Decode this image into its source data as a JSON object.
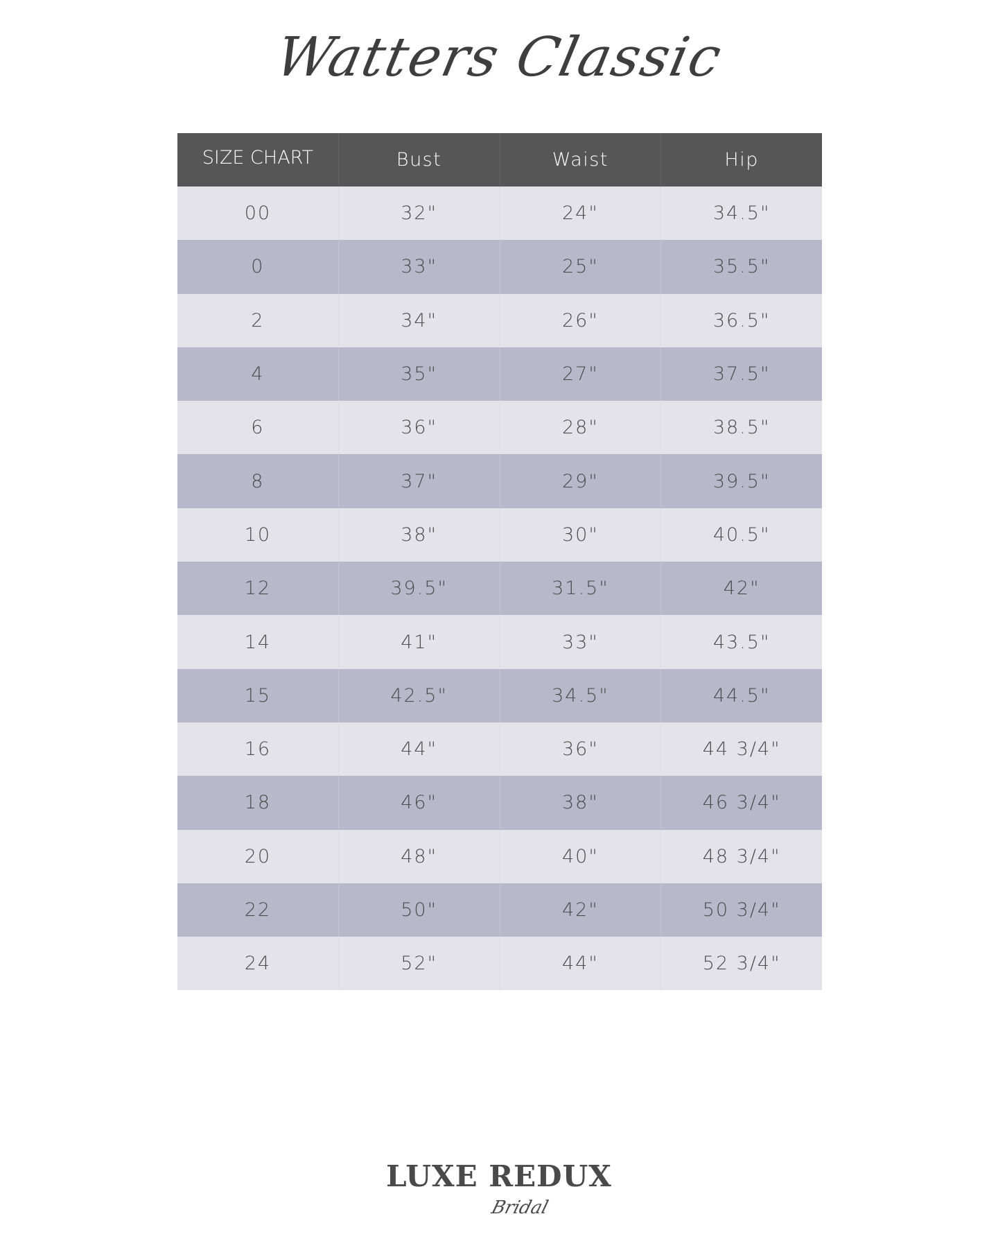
{
  "title": "Watters Classic",
  "table": {
    "headers": [
      "SIZE CHART",
      "Bust",
      "Waist",
      "Hip"
    ],
    "rows": [
      [
        "00",
        "32\"",
        "24\"",
        "34.5\""
      ],
      [
        "0",
        "33\"",
        "25\"",
        "35.5\""
      ],
      [
        "2",
        "34\"",
        "26\"",
        "36.5\""
      ],
      [
        "4",
        "35\"",
        "27\"",
        "37.5\""
      ],
      [
        "6",
        "36\"",
        "28\"",
        "38.5\""
      ],
      [
        "8",
        "37\"",
        "29\"",
        "39.5\""
      ],
      [
        "10",
        "38\"",
        "30\"",
        "40.5\""
      ],
      [
        "12",
        "39.5\"",
        "31.5\"",
        "42\""
      ],
      [
        "14",
        "41\"",
        "33\"",
        "43.5\""
      ],
      [
        "15",
        "42.5\"",
        "34.5\"",
        "44.5\""
      ],
      [
        "16",
        "44\"",
        "36\"",
        "44 3/4\""
      ],
      [
        "18",
        "46\"",
        "38\"",
        "46 3/4\""
      ],
      [
        "20",
        "48\"",
        "40\"",
        "48 3/4\""
      ],
      [
        "22",
        "50\"",
        "42\"",
        "50 3/4\""
      ],
      [
        "24",
        "52\"",
        "44\"",
        "52 3/4\""
      ]
    ]
  },
  "logo": {
    "main": "LUXE REDUX",
    "sub": "Bridal"
  },
  "colors": {
    "header_bg": "#565656",
    "row_light": "#e4e3ea",
    "row_dark": "#b9b8ca",
    "text": "#4d4d4d"
  }
}
